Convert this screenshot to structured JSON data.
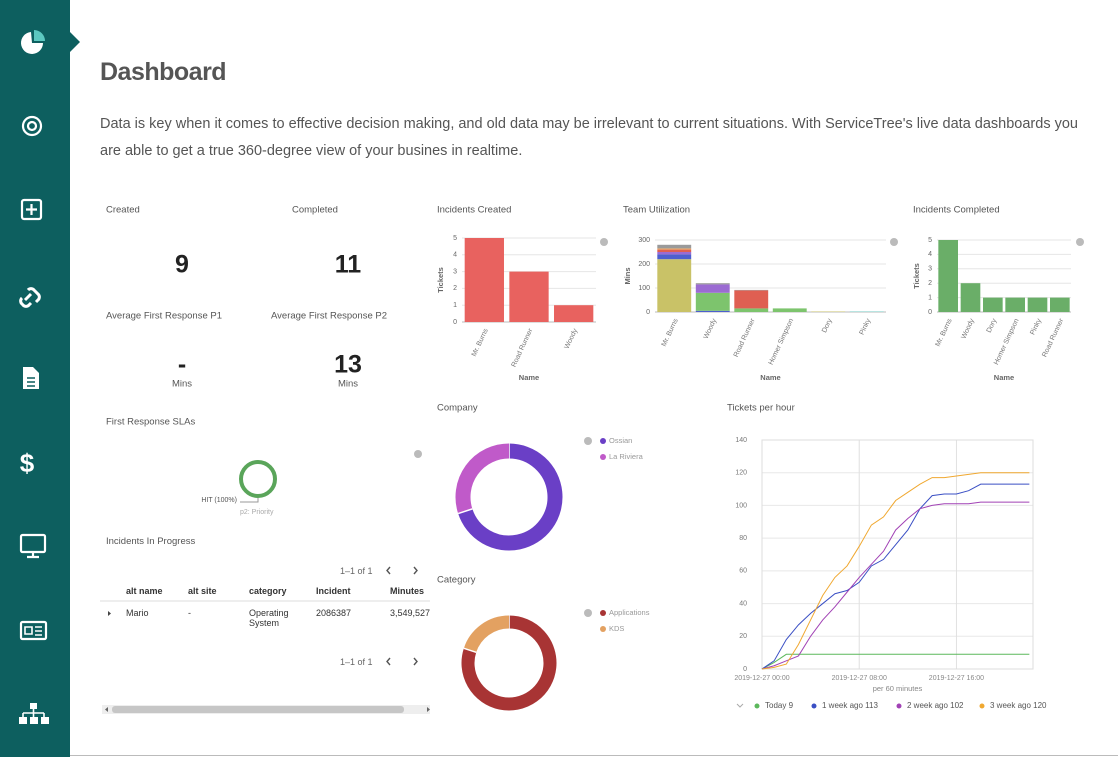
{
  "header": {
    "title": "Dashboard",
    "description": "Data is key when it comes to effective decision making, and old data may be irrelevant to current situations. With ServiceTree's live data dashboards you are able to get a true 360-degree view of your busines in realtime."
  },
  "kpis": [
    {
      "label": "Created",
      "value": 9
    },
    {
      "label": "Completed",
      "value": 11
    },
    {
      "label": "Average First Response P1",
      "value": "-",
      "unit": "Mins"
    },
    {
      "label": "Average First Response P2",
      "value": 13,
      "unit": "Mins"
    }
  ],
  "table": {
    "title": "Incidents In Progress",
    "pagination": "1–1 of 1",
    "columns": [
      "alt name",
      "alt site",
      "category",
      "Incident",
      "Minutes"
    ],
    "rows": [
      [
        "Mario",
        "-",
        "Operating System",
        "2086387",
        "3,549,527"
      ]
    ]
  },
  "chart_data": [
    {
      "type": "bar",
      "title": "Incidents Created",
      "x_label": "Name",
      "y_label": "Tickets",
      "categories": [
        "Mr. Burns",
        "Road Runner",
        "Woody"
      ],
      "values": [
        5,
        3,
        1
      ],
      "color": "#e8625f",
      "ylim": [
        0,
        5
      ],
      "yticks": [
        0,
        1,
        2,
        3,
        4,
        5
      ],
      "grid": true
    },
    {
      "type": "bar",
      "title": "Team Utilization",
      "x_label": "Name",
      "y_label": "Mins",
      "stacked": true,
      "categories": [
        "Mr. Burns",
        "Woody",
        "Road Runner",
        "Homer Simpson",
        "Dory",
        "Pinky"
      ],
      "series": [
        {
          "color": "#c9c267",
          "values": [
            220,
            0,
            0,
            0,
            2,
            0
          ]
        },
        {
          "color": "#4d5fcf",
          "values": [
            20,
            5,
            0,
            0,
            0,
            0
          ]
        },
        {
          "color": "#7dc46d",
          "values": [
            0,
            75,
            15,
            15,
            0,
            0
          ]
        },
        {
          "color": "#9b6bd2",
          "values": [
            10,
            35,
            0,
            0,
            0,
            0
          ]
        },
        {
          "color": "#df5f52",
          "values": [
            10,
            0,
            75,
            0,
            0,
            0
          ]
        },
        {
          "color": "#e8a562",
          "values": [
            5,
            0,
            0,
            0,
            0,
            0
          ]
        },
        {
          "color": "#6fc9c3",
          "values": [
            0,
            0,
            0,
            0,
            0,
            2
          ]
        },
        {
          "color": "#9a9a9a",
          "values": [
            15,
            5,
            2,
            0,
            0,
            0
          ]
        }
      ],
      "ylim": [
        0,
        300
      ],
      "yticks": [
        0,
        100,
        200,
        300
      ],
      "grid": true
    },
    {
      "type": "bar",
      "title": "Incidents Completed",
      "x_label": "Name",
      "y_label": "Tickets",
      "categories": [
        "Mr. Burns",
        "Woody",
        "Dory",
        "Homer Simpson",
        "Pinky",
        "Road Runner"
      ],
      "values": [
        5,
        2,
        1,
        1,
        1,
        1
      ],
      "color": "#6aae68",
      "ylim": [
        0,
        5
      ],
      "yticks": [
        0,
        1,
        2,
        3,
        4,
        5
      ],
      "grid": true
    },
    {
      "type": "pie",
      "title": "First Response SLAs",
      "subtitle": "p2: Priority",
      "values": [
        100
      ],
      "value_labels": [
        "HIT (100%)"
      ],
      "colors": [
        "#5aa55a"
      ]
    },
    {
      "type": "pie",
      "title": "Company",
      "categories": [
        "Ossian",
        "La Riviera"
      ],
      "values": [
        70,
        30
      ],
      "colors": [
        "#6a3fc6",
        "#c05ac9"
      ]
    },
    {
      "type": "pie",
      "title": "Category",
      "categories": [
        "Applications",
        "KDS"
      ],
      "values": [
        80,
        20
      ],
      "colors": [
        "#a83434",
        "#e3a161"
      ]
    },
    {
      "type": "line",
      "title": "Tickets per hour",
      "x_label": "per 60 minutes",
      "x": [
        0,
        1,
        2,
        3,
        4,
        5,
        6,
        7,
        8,
        9,
        10,
        11,
        12,
        13,
        14,
        15,
        16,
        17,
        18,
        19,
        20,
        21,
        22
      ],
      "xlim": [
        0,
        22.3
      ],
      "xticks": [
        {
          "value": 0,
          "label": "2019-12-27 00:00"
        },
        {
          "value": 8,
          "label": "2019-12-27 08:00"
        },
        {
          "value": 16,
          "label": "2019-12-27 16:00"
        }
      ],
      "ylim": [
        0,
        140
      ],
      "yticks": [
        0,
        20,
        40,
        60,
        80,
        100,
        120,
        140
      ],
      "grid": true,
      "series": [
        {
          "name": "Today 9",
          "color": "#5cb85c",
          "values": [
            0,
            4,
            9,
            9,
            9,
            9,
            9,
            9,
            9,
            9,
            9,
            9,
            9,
            9,
            9,
            9,
            9,
            9,
            9,
            9,
            9,
            9,
            9
          ]
        },
        {
          "name": "1 week ago 113",
          "color": "#3a4fc4",
          "values": [
            0,
            5,
            18,
            27,
            34,
            40,
            46,
            48,
            53,
            63,
            67,
            76,
            85,
            98,
            106,
            107,
            107,
            109,
            113,
            113,
            113,
            113,
            113
          ]
        },
        {
          "name": "2 week ago 102",
          "color": "#a142b5",
          "values": [
            0,
            2,
            5,
            8,
            20,
            30,
            38,
            47,
            56,
            64,
            72,
            85,
            92,
            98,
            100,
            101,
            101,
            101,
            102,
            102,
            102,
            102,
            102
          ]
        },
        {
          "name": "3 week ago 120",
          "color": "#f0a830",
          "values": [
            0,
            1,
            3,
            15,
            30,
            45,
            56,
            63,
            75,
            88,
            93,
            103,
            108,
            113,
            117,
            117,
            118,
            119,
            120,
            120,
            120,
            120,
            120
          ]
        }
      ]
    }
  ]
}
